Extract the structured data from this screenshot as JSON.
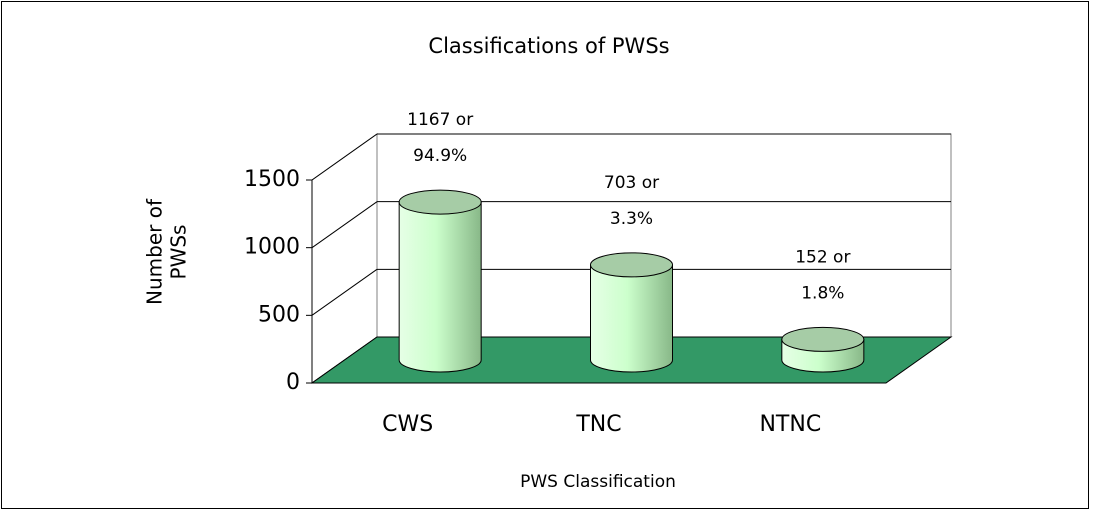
{
  "chart_data": {
    "type": "bar3d",
    "title": "Classifications of PWSs",
    "y_label": [
      "Number of",
      "PWSs"
    ],
    "x_label": "PWS Classification",
    "categories": [
      "CWS",
      "TNC",
      "NTNC"
    ],
    "values": [
      1167,
      703,
      152
    ],
    "value_labels": [
      [
        "1167 or",
        "94.9%"
      ],
      [
        "703 or",
        "3.3%"
      ],
      [
        "152 or",
        "1.8%"
      ]
    ],
    "color": "#ccffcc",
    "floor_color": "#339966",
    "ylim": [
      0,
      1500
    ],
    "yticks": [
      0,
      500,
      1000,
      1500
    ],
    "grid": true
  }
}
